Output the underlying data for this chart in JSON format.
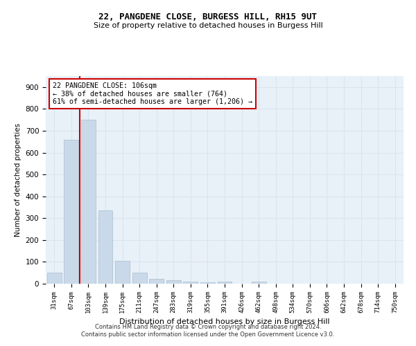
{
  "title1": "22, PANGDENE CLOSE, BURGESS HILL, RH15 9UT",
  "title2": "Size of property relative to detached houses in Burgess Hill",
  "xlabel": "Distribution of detached houses by size in Burgess Hill",
  "ylabel": "Number of detached properties",
  "categories": [
    "31sqm",
    "67sqm",
    "103sqm",
    "139sqm",
    "175sqm",
    "211sqm",
    "247sqm",
    "283sqm",
    "319sqm",
    "355sqm",
    "391sqm",
    "426sqm",
    "462sqm",
    "498sqm",
    "534sqm",
    "570sqm",
    "606sqm",
    "642sqm",
    "678sqm",
    "714sqm",
    "750sqm"
  ],
  "values": [
    50,
    660,
    750,
    335,
    105,
    50,
    22,
    15,
    10,
    5,
    8,
    0,
    8,
    0,
    0,
    0,
    0,
    0,
    0,
    0,
    0
  ],
  "bar_color": "#c9d9ea",
  "bar_edge_color": "#aabccc",
  "vline_color": "#cc0000",
  "annotation_text": "22 PANGDENE CLOSE: 106sqm\n← 38% of detached houses are smaller (764)\n61% of semi-detached houses are larger (1,206) →",
  "annotation_box_color": "white",
  "annotation_box_edge": "#cc0000",
  "ylim": [
    0,
    950
  ],
  "yticks": [
    0,
    100,
    200,
    300,
    400,
    500,
    600,
    700,
    800,
    900
  ],
  "grid_color": "#d8e4ef",
  "background_color": "#e8f0f8",
  "footer1": "Contains HM Land Registry data © Crown copyright and database right 2024.",
  "footer2": "Contains public sector information licensed under the Open Government Licence v3.0."
}
